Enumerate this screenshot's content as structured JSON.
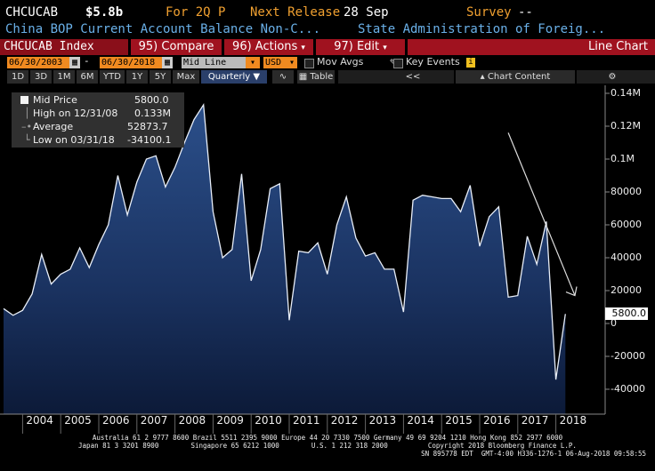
{
  "header": {
    "ticker": "CHCUCAB",
    "value": "$5.8b",
    "period": "For 2Q P",
    "next_release_label": "Next Release",
    "next_release_date": "28 Sep",
    "survey_label": "Survey",
    "survey_value": "--",
    "description": "China BOP Current Account Balance Non-C...",
    "source": "State Administration of Foreig..."
  },
  "toolbar": {
    "index_label": "CHCUCAB Index",
    "compare": "95) Compare",
    "actions": "96) Actions",
    "edit": "97) Edit",
    "chart_type": "Line Chart"
  },
  "controls": {
    "start_date": "06/30/2003",
    "end_date": "06/30/2018",
    "line_type": "Mid Line",
    "currency": "USD",
    "mov_avgs": "Mov Avgs",
    "key_events": "Key Events",
    "info": "i",
    "ranges": [
      "1D",
      "3D",
      "1M",
      "6M",
      "YTD",
      "1Y",
      "5Y",
      "Max"
    ],
    "frequency": "Quarterly",
    "table": "Table",
    "chart_content": "Chart Content",
    "collapse": "<<"
  },
  "legend": {
    "mid_price_label": "Mid Price",
    "mid_price_value": "5800.0",
    "high_label": "High on 12/31/08",
    "high_value": "0.133M",
    "average_label": "Average",
    "average_value": "52873.7",
    "low_label": "Low on 03/31/18",
    "low_value": "-34100.1"
  },
  "last_value_label": "5800.0",
  "chart_data": {
    "type": "area",
    "title": "",
    "xlabel": "",
    "ylabel": "",
    "x_range": [
      2003.5,
      2018.5
    ],
    "ylim": [
      -55000,
      145000
    ],
    "y_ticks": [
      -40000,
      -20000,
      0,
      20000,
      40000,
      60000,
      80000,
      100000,
      120000,
      140000
    ],
    "y_tick_labels": [
      "-40000",
      "-20000",
      "0",
      "20000",
      "40000",
      "60000",
      "80000",
      "0.1M",
      "0.12M",
      "0.14M"
    ],
    "x_ticks": [
      "2004",
      "2005",
      "2006",
      "2007",
      "2008",
      "2009",
      "2010",
      "2011",
      "2012",
      "2013",
      "2014",
      "2015",
      "2016",
      "2017",
      "2018"
    ],
    "series": [
      {
        "values": [
          [
            2003.5,
            9000
          ],
          [
            2003.75,
            5000
          ],
          [
            2004.0,
            8000
          ],
          [
            2004.25,
            18000
          ],
          [
            2004.5,
            42000
          ],
          [
            2004.75,
            24000
          ],
          [
            2005.0,
            30000
          ],
          [
            2005.25,
            33000
          ],
          [
            2005.5,
            46000
          ],
          [
            2005.75,
            34000
          ],
          [
            2006.0,
            48000
          ],
          [
            2006.25,
            60000
          ],
          [
            2006.5,
            90000
          ],
          [
            2006.75,
            66000
          ],
          [
            2007.0,
            86000
          ],
          [
            2007.25,
            100000
          ],
          [
            2007.5,
            102000
          ],
          [
            2007.75,
            83000
          ],
          [
            2008.0,
            95000
          ],
          [
            2008.25,
            110000
          ],
          [
            2008.5,
            124000
          ],
          [
            2008.75,
            133000
          ],
          [
            2009.0,
            68000
          ],
          [
            2009.25,
            40000
          ],
          [
            2009.5,
            45000
          ],
          [
            2009.75,
            91000
          ],
          [
            2010.0,
            26000
          ],
          [
            2010.25,
            45000
          ],
          [
            2010.5,
            82000
          ],
          [
            2010.75,
            85000
          ],
          [
            2011.0,
            2000
          ],
          [
            2011.25,
            44000
          ],
          [
            2011.5,
            43000
          ],
          [
            2011.75,
            49000
          ],
          [
            2012.0,
            30000
          ],
          [
            2012.25,
            60000
          ],
          [
            2012.5,
            77000
          ],
          [
            2012.75,
            52000
          ],
          [
            2013.0,
            41000
          ],
          [
            2013.25,
            43000
          ],
          [
            2013.5,
            33000
          ],
          [
            2013.75,
            33000
          ],
          [
            2014.0,
            7000
          ],
          [
            2014.25,
            75000
          ],
          [
            2014.5,
            78000
          ],
          [
            2014.75,
            77000
          ],
          [
            2015.0,
            76000
          ],
          [
            2015.25,
            76000
          ],
          [
            2015.5,
            68000
          ],
          [
            2015.75,
            84000
          ],
          [
            2016.0,
            47000
          ],
          [
            2016.25,
            65000
          ],
          [
            2016.5,
            71000
          ],
          [
            2016.75,
            16000
          ],
          [
            2017.0,
            17000
          ],
          [
            2017.25,
            53000
          ],
          [
            2017.5,
            36000
          ],
          [
            2017.75,
            62000
          ],
          [
            2018.0,
            -34100
          ],
          [
            2018.25,
            5800
          ]
        ]
      }
    ],
    "trendline": [
      [
        2016.75,
        116000
      ],
      [
        2018.5,
        17000
      ]
    ],
    "arrow_end": [
      2018.45,
      13000
    ],
    "grid": false
  },
  "footer": {
    "line1": "Australia 61 2 9777 8600 Brazil 5511 2395 9000 Europe 44 20 7330 7500 Germany 49 69 9204 1210 Hong Kong 852 2977 6000",
    "line2": "Japan 81 3 3201 8900        Singapore 65 6212 1000        U.S. 1 212 318 2000          Copyright 2018 Bloomberg Finance L.P.",
    "line3": "SN 895778 EDT  GMT-4:00 H336-1276-1 06-Aug-2018 09:58:55"
  }
}
